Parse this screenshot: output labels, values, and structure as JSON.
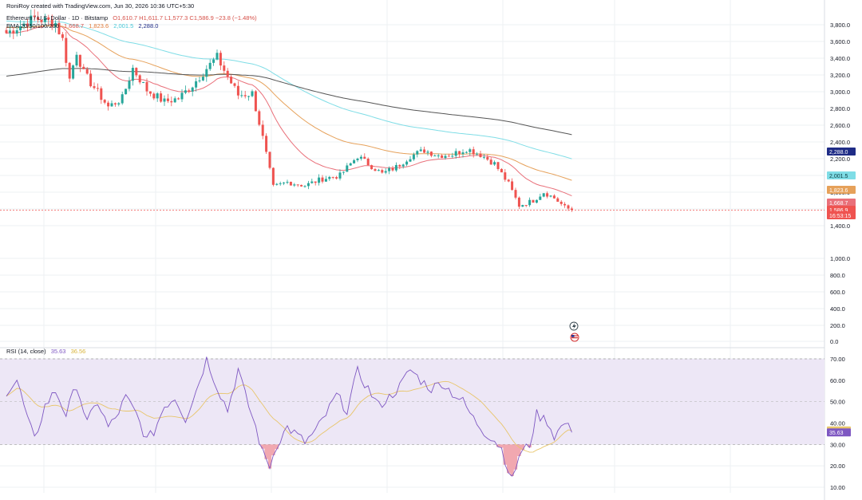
{
  "header": {
    "creator_line": "RoniRoy created with TradingView.com, Jun 30, 2026 10:36 UTC+5:30",
    "symbol": "Ethereum / U.S. Dollar · 1D · Bitstamp",
    "ohlc_text": "O1,610.7  H1,611.7  L1,577.3  C1,586.9  −23.8 (−1.48%)",
    "ema_label": "EMA 20/50/100/200",
    "ema_values": [
      "1,668.7",
      "1,823.6",
      "2,001.5",
      "2,288.0"
    ]
  },
  "rsi_header": {
    "label": "RSI (14, close)",
    "rsi_value": "35.63",
    "ma_value": "36.56"
  },
  "colors": {
    "up": "#26a69a",
    "down": "#ef5350",
    "ema20": "#e9707a",
    "ema50": "#e6a15a",
    "ema100": "#7fdde6",
    "ema200": "#555555",
    "rsi": "#7e57c2",
    "rsi_ma": "#e8c56a",
    "rsi_band": "#ede7f6"
  },
  "chart_data": [
    {
      "type": "candlestick",
      "title": "Ethereum / U.S. Dollar · 1D · Bitstamp",
      "y_axis_ticks": [
        "3,800.0",
        "3,600.0",
        "3,400.0",
        "3,200.0",
        "3,000.0",
        "2,800.0",
        "2,600.0",
        "2,400.0",
        "2,200.0",
        "2,000.0",
        "1,800.0",
        "1,600.0",
        "1,400.0",
        "1,000.0",
        "800.0",
        "600.0",
        "400.0",
        "200.0",
        "0.0"
      ],
      "y_axis_scale": "log",
      "grid": true,
      "price_labels": [
        {
          "text": "2,288.0",
          "value": 2288.0,
          "color": "#1f2c86"
        },
        {
          "text": "2,001.5",
          "value": 2001.5,
          "color": "#7fdde6"
        },
        {
          "text": "1,823.6",
          "value": 1823.6,
          "color": "#e6a15a"
        },
        {
          "text": "1,668.7",
          "value": 1668.7,
          "color": "#e9707a"
        },
        {
          "text": "1,586.9",
          "value": 1586.9,
          "color": "#ef5350"
        },
        {
          "text": "16:53:15",
          "value": 1586.9,
          "color": "#ef5350"
        }
      ],
      "close_anchors": [
        [
          0,
          3700
        ],
        [
          8,
          3880
        ],
        [
          14,
          3820
        ],
        [
          16,
          3620
        ],
        [
          18,
          3150
        ],
        [
          20,
          3480
        ],
        [
          22,
          3220
        ],
        [
          25,
          3050
        ],
        [
          29,
          2820
        ],
        [
          33,
          2920
        ],
        [
          36,
          3280
        ],
        [
          40,
          3020
        ],
        [
          45,
          2880
        ],
        [
          49,
          2920
        ],
        [
          53,
          3080
        ],
        [
          57,
          3280
        ],
        [
          60,
          3410
        ],
        [
          63,
          3180
        ],
        [
          66,
          2960
        ],
        [
          70,
          2980
        ],
        [
          73,
          2450
        ],
        [
          76,
          1860
        ],
        [
          80,
          1920
        ],
        [
          85,
          1880
        ],
        [
          90,
          1960
        ],
        [
          95,
          2000
        ],
        [
          100,
          2230
        ],
        [
          103,
          2140
        ],
        [
          107,
          2020
        ],
        [
          111,
          2100
        ],
        [
          115,
          2230
        ],
        [
          119,
          2300
        ],
        [
          123,
          2240
        ],
        [
          127,
          2250
        ],
        [
          131,
          2320
        ],
        [
          135,
          2250
        ],
        [
          139,
          2140
        ],
        [
          143,
          1900
        ],
        [
          146,
          1640
        ],
        [
          150,
          1700
        ],
        [
          153,
          1800
        ],
        [
          156,
          1730
        ],
        [
          159,
          1620
        ],
        [
          161,
          1586.9
        ]
      ],
      "ema_end_values": {
        "EMA 20": 1668.7,
        "EMA 50": 1823.6,
        "EMA 100": 2001.5,
        "EMA 200": 2288.0
      }
    },
    {
      "type": "line",
      "title": "RSI (14, close)",
      "y_axis_ticks": [
        "70.00",
        "60.00",
        "50.00",
        "40.00",
        "30.00",
        "20.00",
        "10.00"
      ],
      "band": [
        30,
        70
      ],
      "series": [
        {
          "name": "RSI",
          "last": 35.63,
          "anchors": [
            [
              0,
              55
            ],
            [
              3,
              60
            ],
            [
              6,
              42
            ],
            [
              8,
              32
            ],
            [
              11,
              48
            ],
            [
              14,
              55
            ],
            [
              17,
              44
            ],
            [
              20,
              58
            ],
            [
              23,
              40
            ],
            [
              26,
              50
            ],
            [
              29,
              38
            ],
            [
              31,
              42
            ],
            [
              34,
              52
            ],
            [
              37,
              44
            ],
            [
              40,
              32
            ],
            [
              42,
              36
            ],
            [
              45,
              48
            ],
            [
              48,
              52
            ],
            [
              51,
              42
            ],
            [
              54,
              55
            ],
            [
              57,
              70
            ],
            [
              60,
              57
            ],
            [
              63,
              46
            ],
            [
              66,
              65
            ],
            [
              68,
              53
            ],
            [
              71,
              38
            ],
            [
              73,
              26
            ],
            [
              75,
              20
            ],
            [
              77,
              30
            ],
            [
              80,
              38
            ],
            [
              83,
              34
            ],
            [
              85,
              31
            ],
            [
              88,
              36
            ],
            [
              91,
              44
            ],
            [
              94,
              53
            ],
            [
              97,
              46
            ],
            [
              100,
              64
            ],
            [
              103,
              56
            ],
            [
              106,
              48
            ],
            [
              109,
              52
            ],
            [
              112,
              57
            ],
            [
              115,
              65
            ],
            [
              118,
              60
            ],
            [
              121,
              56
            ],
            [
              124,
              59
            ],
            [
              127,
              54
            ],
            [
              130,
              50
            ],
            [
              133,
              42
            ],
            [
              136,
              36
            ],
            [
              139,
              32
            ],
            [
              141,
              28
            ],
            [
              143,
              18
            ],
            [
              144,
              13
            ],
            [
              146,
              25
            ],
            [
              149,
              30
            ],
            [
              151,
              44
            ],
            [
              154,
              41
            ],
            [
              156,
              34
            ],
            [
              159,
              40
            ],
            [
              161,
              35.63
            ]
          ]
        },
        {
          "name": "RSI-based MA",
          "last": 36.56
        }
      ]
    }
  ]
}
